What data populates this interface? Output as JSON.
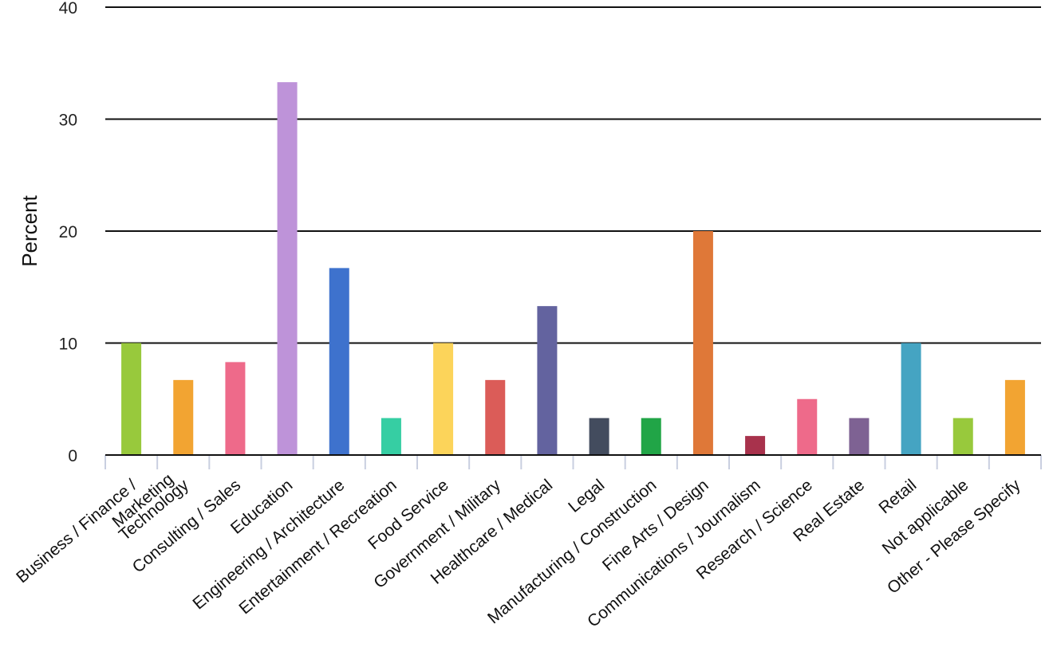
{
  "chart_data": {
    "type": "bar",
    "ylabel": "Percent",
    "ylim": [
      0,
      40
    ],
    "yticks": [
      0,
      10,
      20,
      30,
      40
    ],
    "grid": true,
    "categories": [
      "Business / Finance / Marketing",
      "Technology",
      "Consulting / Sales",
      "Education",
      "Engineering / Architecture",
      "Entertainment / Recreation",
      "Food Service",
      "Government / Military",
      "Healthcare / Medical",
      "Legal",
      "Manufacturing / Construction",
      "Fine Arts / Design",
      "Communications / Journalism",
      "Research / Science",
      "Real Estate",
      "Retail",
      "Not applicable",
      "Other - Please Specify"
    ],
    "values": [
      10.0,
      6.7,
      8.3,
      33.3,
      16.7,
      3.3,
      10.0,
      6.7,
      13.3,
      3.3,
      3.3,
      20.0,
      1.7,
      5.0,
      3.3,
      10.0,
      3.3,
      6.7
    ],
    "colors": [
      "#98c93c",
      "#f2a432",
      "#ee6a8a",
      "#be93d9",
      "#3e72cd",
      "#36cea3",
      "#fcd45a",
      "#db5c58",
      "#63639f",
      "#434c5e",
      "#21a547",
      "#df7838",
      "#a8324c",
      "#ee6a8a",
      "#7e6293",
      "#45a4c2",
      "#98c93c",
      "#f2a432"
    ]
  }
}
